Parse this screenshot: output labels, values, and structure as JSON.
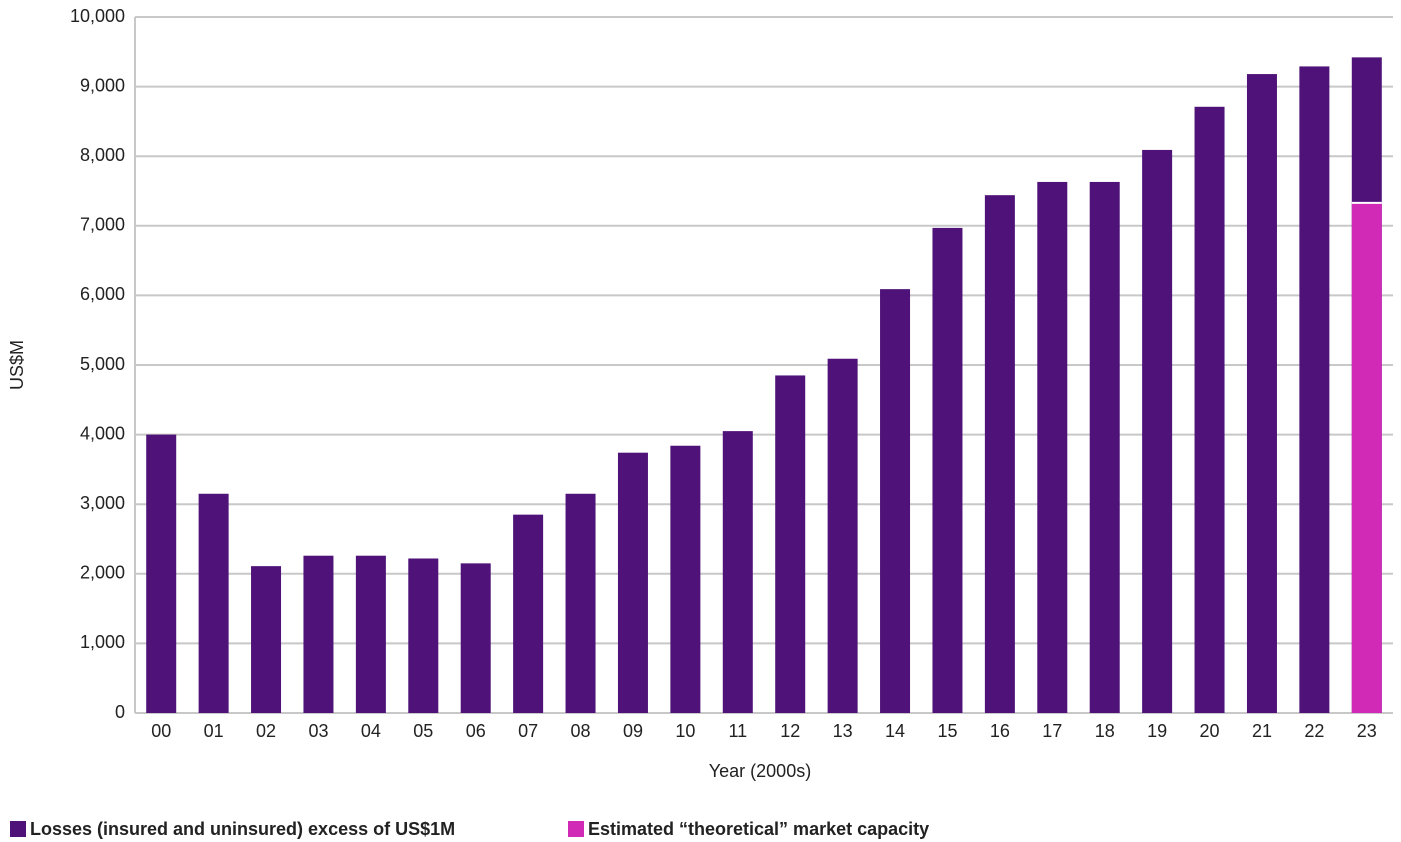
{
  "chart_data": {
    "type": "bar",
    "barmode": "overlay",
    "x_label": "Year (2000s)",
    "y_label": "US$M",
    "categories": [
      "00",
      "01",
      "02",
      "03",
      "04",
      "05",
      "06",
      "07",
      "08",
      "09",
      "10",
      "11",
      "12",
      "13",
      "14",
      "15",
      "16",
      "17",
      "18",
      "19",
      "20",
      "21",
      "22",
      "23"
    ],
    "series": [
      {
        "name": "Losses (insured and uninsured) excess of US$1M",
        "color": "#4f1278",
        "values": [
          4000,
          3150,
          2110,
          2260,
          2260,
          2220,
          2150,
          2850,
          3150,
          3740,
          3840,
          4050,
          4850,
          5090,
          6090,
          6970,
          7440,
          7630,
          7630,
          8090,
          8710,
          9180,
          9290,
          9420
        ]
      },
      {
        "name": "Estimated “theoretical” market capacity",
        "color": "#d02ab6",
        "values": [
          null,
          null,
          null,
          null,
          null,
          null,
          null,
          null,
          null,
          null,
          null,
          null,
          null,
          null,
          null,
          null,
          null,
          null,
          null,
          null,
          null,
          null,
          null,
          7330
        ]
      }
    ],
    "ylim": [
      0,
      10000
    ],
    "yticks": [
      0,
      {
        "value": 1000,
        "label": "1,000"
      },
      {
        "value": 2000,
        "label": "2,000"
      },
      {
        "value": 3000,
        "label": "3,000"
      },
      {
        "value": 4000,
        "label": "4,000"
      },
      {
        "value": 5000,
        "label": "5,000"
      },
      {
        "value": 6000,
        "label": "6,000"
      },
      {
        "value": 7000,
        "label": "7,000"
      },
      {
        "value": 8000,
        "label": "8,000"
      },
      {
        "value": 9000,
        "label": "9,000"
      },
      {
        "value": 10000,
        "label": "10,000"
      }
    ],
    "grid": true
  }
}
